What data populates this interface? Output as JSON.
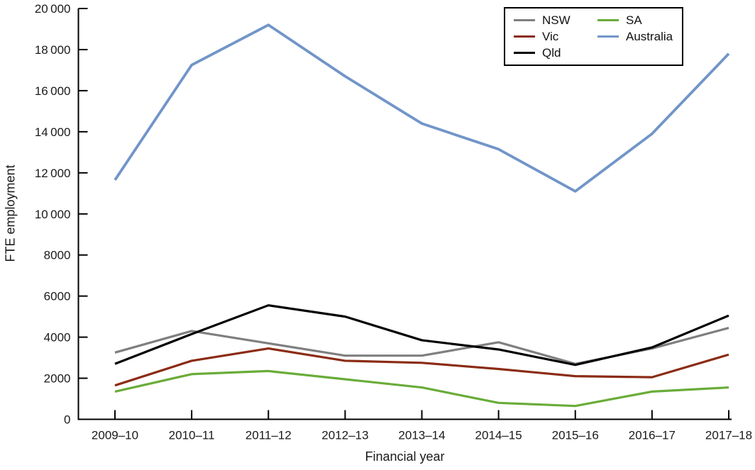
{
  "axes": {
    "x_title": "Financial year",
    "y_title": "FTE employment"
  },
  "chart_data": {
    "type": "line",
    "title": "",
    "xlabel": "Financial year",
    "ylabel": "FTE employment",
    "categories": [
      "2009–10",
      "2010–11",
      "2011–12",
      "2012–13",
      "2013–14",
      "2014–15",
      "2015–16",
      "2016–17",
      "2017–18"
    ],
    "ylim": [
      0,
      20000
    ],
    "ytick_step": 2000,
    "ytick_labels": [
      "0",
      "2000",
      "4000",
      "6000",
      "8000",
      "10 000",
      "12 000",
      "14 000",
      "16 000",
      "18 000",
      "20 000"
    ],
    "grid": false,
    "legend_position": "top-right",
    "tick_direction": "in",
    "axis_color": "#000000",
    "series": [
      {
        "name": "NSW",
        "color": "#7f7f7f",
        "values": [
          3250,
          4300,
          3700,
          3100,
          3100,
          3750,
          2700,
          3450,
          4450
        ]
      },
      {
        "name": "Vic",
        "color": "#8b2b15",
        "values": [
          1650,
          2850,
          3450,
          2850,
          2750,
          2450,
          2100,
          2050,
          3150
        ]
      },
      {
        "name": "Qld",
        "color": "#000000",
        "values": [
          2700,
          4150,
          5550,
          5000,
          3850,
          3400,
          2650,
          3500,
          5050
        ]
      },
      {
        "name": "SA",
        "color": "#69ac39",
        "values": [
          1350,
          2200,
          2350,
          1950,
          1550,
          800,
          650,
          1350,
          1550
        ]
      },
      {
        "name": "Australia",
        "color": "#7195c8",
        "values": [
          11650,
          17250,
          19200,
          16700,
          14400,
          13150,
          11100,
          13900,
          17800
        ]
      }
    ]
  }
}
